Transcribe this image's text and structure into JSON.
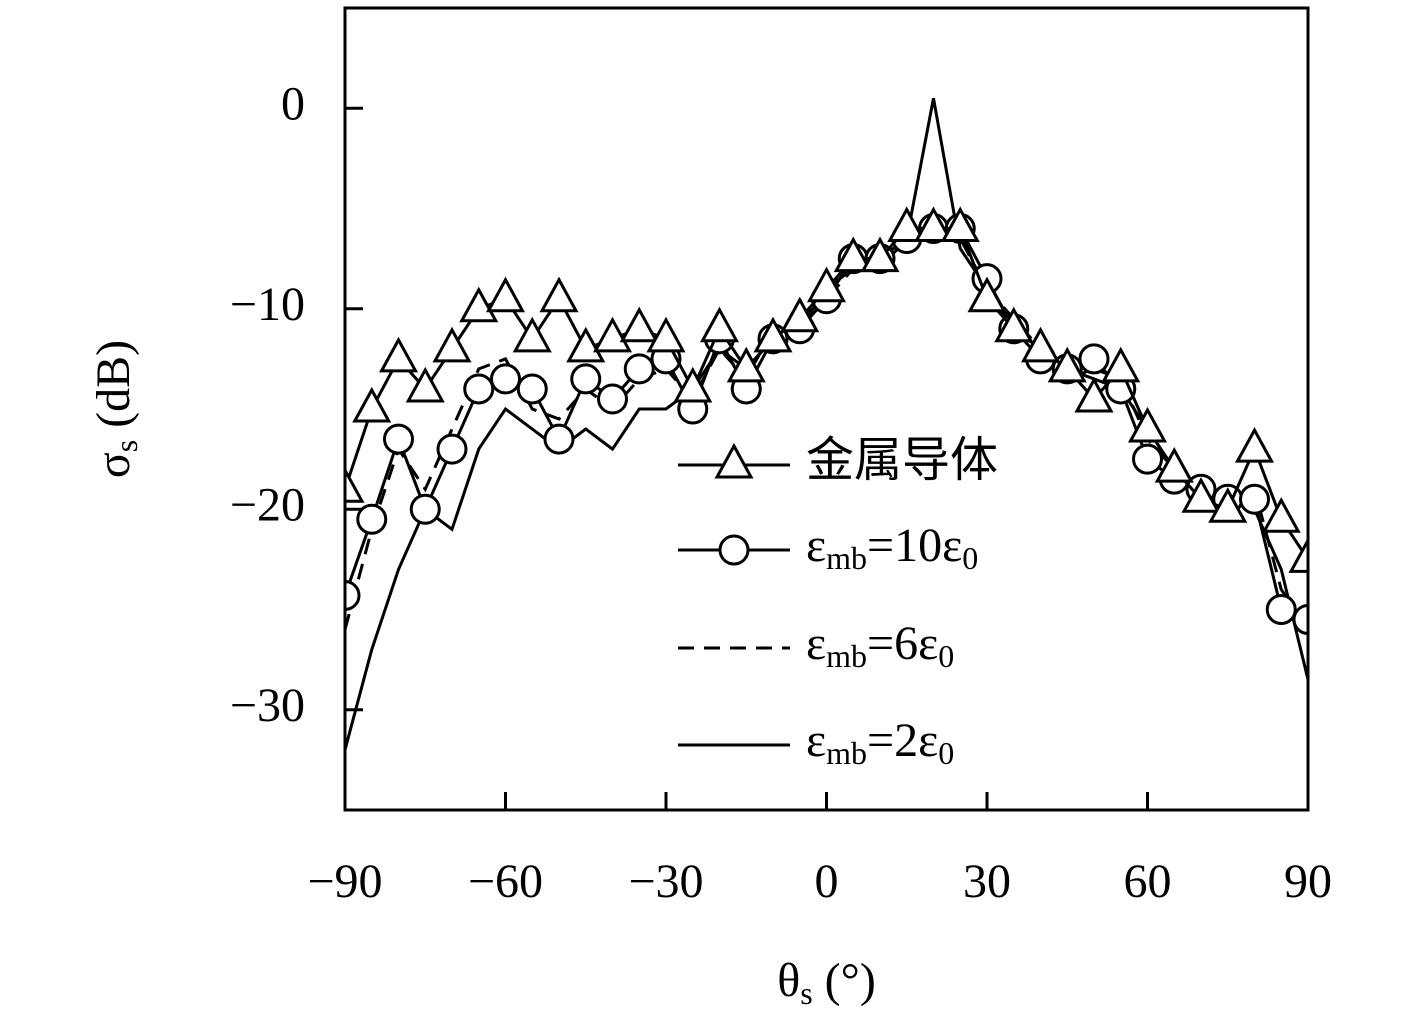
{
  "chart_data": {
    "type": "line",
    "xlabel": "θ_s (°)",
    "ylabel": "σ_s (dB)",
    "x": [
      -90,
      -85,
      -80,
      -75,
      -70,
      -65,
      -60,
      -55,
      -50,
      -45,
      -40,
      -35,
      -30,
      -25,
      -20,
      -15,
      -10,
      -5,
      0,
      5,
      10,
      15,
      20,
      25,
      30,
      35,
      40,
      45,
      50,
      55,
      60,
      65,
      70,
      75,
      80,
      85,
      90
    ],
    "series": [
      {
        "name": "金属导体",
        "color": "#000000",
        "marker": "triangle",
        "dash": false,
        "values": [
          -19,
          -15,
          -12.5,
          -14,
          -12,
          -10,
          -9.5,
          -11.5,
          -9.5,
          -12,
          -11.5,
          -11,
          -11.5,
          -14,
          -11,
          -13,
          -11.5,
          -10.5,
          -9,
          -7.5,
          -7.5,
          -6,
          -6,
          -6,
          -9.5,
          -11,
          -12,
          -13,
          -14.5,
          -13,
          -16,
          -18,
          -19.5,
          -20,
          -17,
          -20.5,
          -22.5
        ]
      },
      {
        "name": "ε_mb=10ε_0",
        "color": "#000000",
        "marker": "circle",
        "dash": false,
        "values": [
          -24.3,
          -20.5,
          -16.5,
          -20,
          -17,
          -14,
          -13.5,
          -14,
          -16.5,
          -13.5,
          -14.5,
          -13,
          -12.5,
          -15,
          -11.5,
          -14,
          -11.5,
          -11,
          -9.5,
          -7.5,
          -7.5,
          -6.5,
          -6,
          -6,
          -8.5,
          -11,
          -12.5,
          -13,
          -12.5,
          -14,
          -17.5,
          -18.5,
          -19,
          -19.5,
          -19.5,
          -25,
          -25.5
        ]
      },
      {
        "name": "ε_mb=6ε_0",
        "color": "#000000",
        "marker": "none",
        "dash": true,
        "values": [
          -26,
          -21,
          -17,
          -19,
          -16,
          -13,
          -12.5,
          -15,
          -15.5,
          -14,
          -15,
          -13.5,
          -13,
          -14.5,
          -12,
          -13.5,
          -11,
          -10.5,
          -9.5,
          -8,
          -7.5,
          -6.5,
          -6.5,
          -6.5,
          -9,
          -10.5,
          -12,
          -13.5,
          -13,
          -13.5,
          -16.5,
          -18,
          -19,
          -19,
          -19,
          -24,
          -26
        ]
      },
      {
        "name": "ε_mb=2ε_0",
        "color": "#000000",
        "marker": "none",
        "dash": false,
        "values": [
          -32,
          -27,
          -23,
          -20,
          -21,
          -17,
          -15,
          -16,
          -17,
          -16,
          -17,
          -15,
          -15,
          -14,
          -12,
          -13,
          -11.5,
          -11,
          -9,
          -8,
          -8,
          -6.5,
          0.5,
          -7,
          -9,
          -11,
          -12,
          -13,
          -13.5,
          -14,
          -16,
          -18,
          -19,
          -19.5,
          -20,
          -23,
          -28.5
        ]
      }
    ],
    "xlim": [
      -90,
      90
    ],
    "xticks": [
      {
        "value": -90,
        "label": "−90"
      },
      {
        "value": -60,
        "label": "−60"
      },
      {
        "value": -30,
        "label": "−30"
      },
      0,
      30,
      60,
      90
    ],
    "ylim": [
      -35,
      5
    ],
    "yticks": [
      {
        "value": -30,
        "label": "−30"
      },
      {
        "value": -20,
        "label": "−20"
      },
      {
        "value": -10,
        "label": "−10"
      },
      0
    ],
    "legend": "lower right",
    "grid": false
  }
}
